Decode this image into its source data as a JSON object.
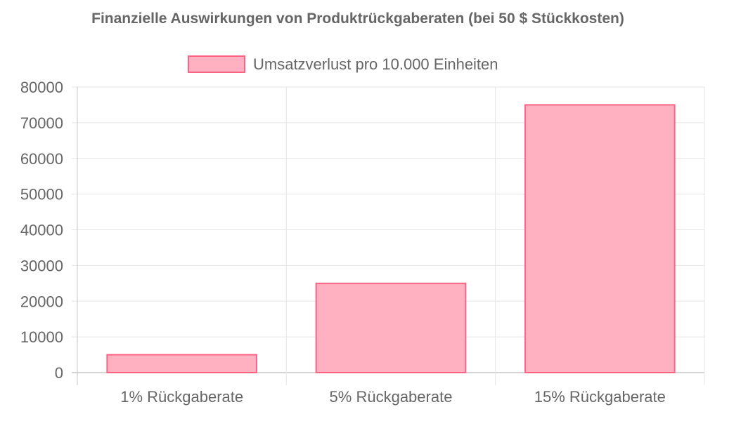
{
  "chart_data": {
    "type": "bar",
    "title": "Finanzielle Auswirkungen von Produktrückgaberaten (bei 50 $ Stückkosten)",
    "categories": [
      "1% Rückgaberate",
      "5% Rückgaberate",
      "15% Rückgaberate"
    ],
    "series": [
      {
        "name": "Umsatzverlust pro 10.000 Einheiten",
        "values": [
          5000,
          25000,
          75000
        ]
      }
    ],
    "ylim": [
      0,
      80000
    ],
    "yticks": [
      "0",
      "10000",
      "20000",
      "30000",
      "40000",
      "50000",
      "60000",
      "70000",
      "80000"
    ],
    "grid": true,
    "legend_position": "top-center",
    "colors": {
      "bar_fill": "#ffb1c1",
      "bar_border": "#ff6384",
      "text": "#666666",
      "grid": "#e5e5e5",
      "axis": "#c6c6c6"
    }
  }
}
